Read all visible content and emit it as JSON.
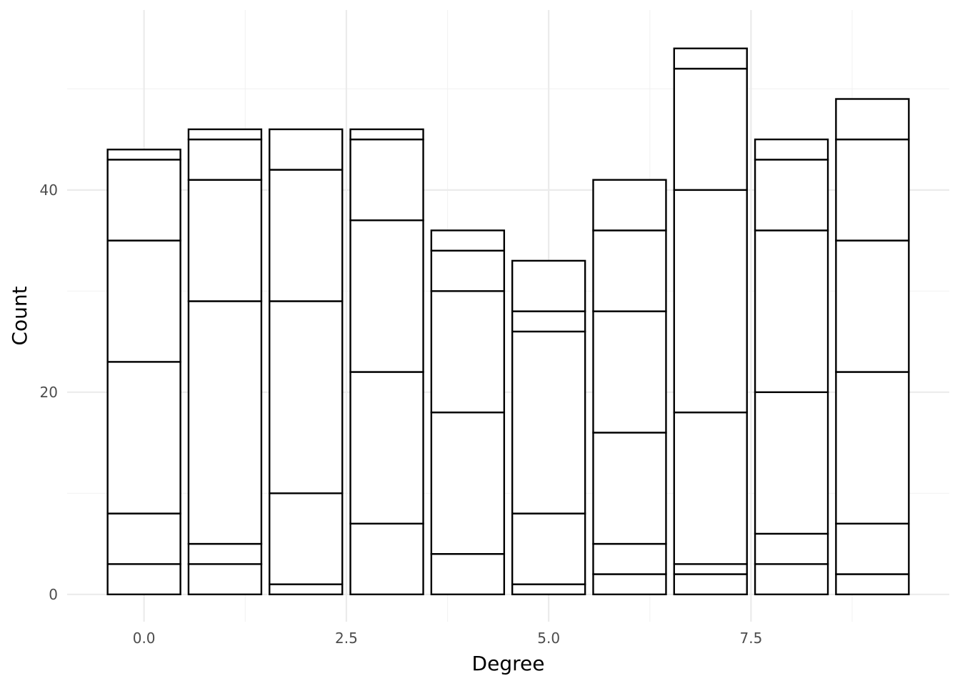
{
  "chart_data": {
    "type": "bar",
    "stacked": true,
    "title": "",
    "xlabel": "Degree",
    "ylabel": "Count",
    "xlim": [
      -0.95,
      9.95
    ],
    "ylim": [
      -2.7,
      57.8
    ],
    "x_ticks": [
      "0.0",
      "2.5",
      "5.0",
      "7.5"
    ],
    "x_tick_values": [
      0,
      2.5,
      5,
      7.5
    ],
    "y_ticks": [
      "0",
      "20",
      "40"
    ],
    "y_tick_values": [
      0,
      20,
      40
    ],
    "grid": true,
    "fill": "#ffffff",
    "outline": "#000000",
    "x": [
      0,
      1,
      2,
      3,
      4,
      5,
      6,
      7,
      8,
      9
    ],
    "segments": [
      [
        3,
        5,
        15,
        12,
        8,
        1
      ],
      [
        3,
        2,
        24,
        12,
        4,
        1
      ],
      [
        1,
        9,
        19,
        13,
        4
      ],
      [
        7,
        15,
        15,
        8,
        1
      ],
      [
        4,
        14,
        12,
        4,
        2
      ],
      [
        1,
        7,
        18,
        2,
        5
      ],
      [
        2,
        3,
        11,
        12,
        8,
        5
      ],
      [
        2,
        1,
        15,
        22,
        12,
        2
      ],
      [
        3,
        3,
        14,
        16,
        7,
        2
      ],
      [
        2,
        5,
        15,
        13,
        10,
        4
      ]
    ],
    "totals": [
      44,
      46,
      46,
      46,
      36,
      33,
      41,
      54,
      45,
      49
    ]
  }
}
